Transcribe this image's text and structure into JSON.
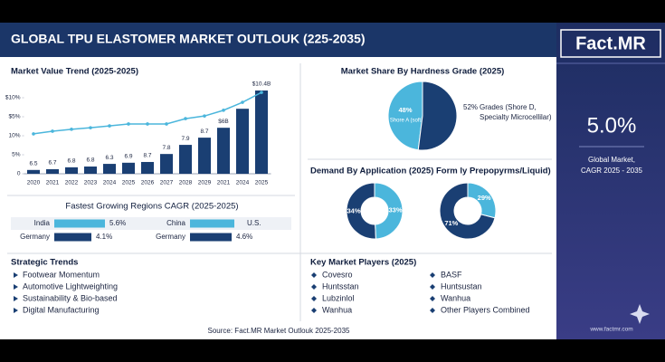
{
  "header": {
    "title": "GLOBAL TPU ELASTOMER MARKET OUTLOUK (225-2035)"
  },
  "brand": {
    "logo": "Fact.MR",
    "cagr": "5.0%",
    "cagr_label": [
      "Global Market,",
      "CAGR 2025 - 2035"
    ],
    "website": "www.factmr.com"
  },
  "chart_data": [
    {
      "type": "bar",
      "title": "Market Value Trend (2025-2025)",
      "categories": [
        "2020",
        "2021",
        "2022",
        "2023",
        "2024",
        "2025",
        "2026",
        "2027",
        "2028",
        "2029",
        "2021",
        "2024",
        "2025"
      ],
      "series": [
        {
          "type": "bar",
          "color": "#1a3f73",
          "values": [
            1,
            1.2,
            1.7,
            1.9,
            2.6,
            2.9,
            3.1,
            5.2,
            7.6,
            9.5,
            12.1,
            17.1,
            21.9
          ],
          "bar_labels": [
            "6.5",
            "6.7",
            "6.8",
            "6.8",
            "6.3",
            "6.9",
            "8.7",
            "7.8",
            "7.9",
            "8.7",
            "$6B",
            null,
            "$10.4B"
          ]
        },
        {
          "type": "line",
          "color": "#4bb6dc",
          "values": [
            10.5,
            11.2,
            11.7,
            12.1,
            12.6,
            13.1,
            13.1,
            13.1,
            14.5,
            15.2,
            16.7,
            18.8,
            21.4
          ]
        }
      ],
      "ylim": [
        0,
        22.5
      ],
      "yticks": [
        0,
        {
          "value": 5,
          "label": "5%"
        },
        {
          "value": 10,
          "label": "10%"
        },
        {
          "value": 15,
          "label": "$5%"
        },
        {
          "value": 20,
          "label": "$10%"
        }
      ],
      "grid": false
    },
    {
      "type": "hbar",
      "title": "Fastest Growing Regions CAGR (2025-2025)",
      "categories": [
        "India",
        "Germany",
        "China",
        "Germany"
      ],
      "values": [
        5.6,
        4.1,
        4.9,
        4.6
      ],
      "value_labels": [
        "5.6%",
        "4.1%",
        null,
        "4.6%"
      ],
      "colors": [
        "#4bb6dc",
        "#1a3f73",
        "#4bb6dc",
        "#1a3f73"
      ],
      "annotation": "U.S."
    },
    {
      "type": "pie",
      "title": "Market Share By Hardness Grade (2025)",
      "categories": [
        "Shore A (soft",
        "Grades (Shore D, Specialty Microcellilar)"
      ],
      "values": [
        48,
        52
      ],
      "value_labels": [
        "48%",
        "52%"
      ],
      "colors": [
        "#4bb6dc",
        "#1a3f73"
      ]
    },
    {
      "type": "donut",
      "title": "Demand By Application (2025)",
      "values": [
        34,
        33
      ],
      "value_labels": [
        "34%",
        "33%"
      ],
      "colors": [
        "#1a3f73",
        "#4bb6dc"
      ]
    },
    {
      "type": "donut",
      "title": "Form ly Prepopyrms/Liquid)",
      "values": [
        71,
        29
      ],
      "value_labels": [
        "71%",
        "29%"
      ],
      "colors": [
        "#1a3f73",
        "#4bb6dc"
      ]
    }
  ],
  "strategic_trends": {
    "title": "Strategic Trends",
    "items": [
      "Footwear Momentum",
      "Automotive Lightweighting",
      "Sustainability & Bio-based",
      "Digital Manufacturing"
    ]
  },
  "key_players": {
    "title": "Key Market Players (2025)",
    "items": [
      "Covesro",
      "Huntsstan",
      "Lubzinlol",
      "Wanhua",
      "BASF",
      "Huntsustan",
      "Wanhua",
      "Other Players Combined"
    ]
  },
  "source": "Source: Fact.MR Market Outlouk 2025-2035"
}
